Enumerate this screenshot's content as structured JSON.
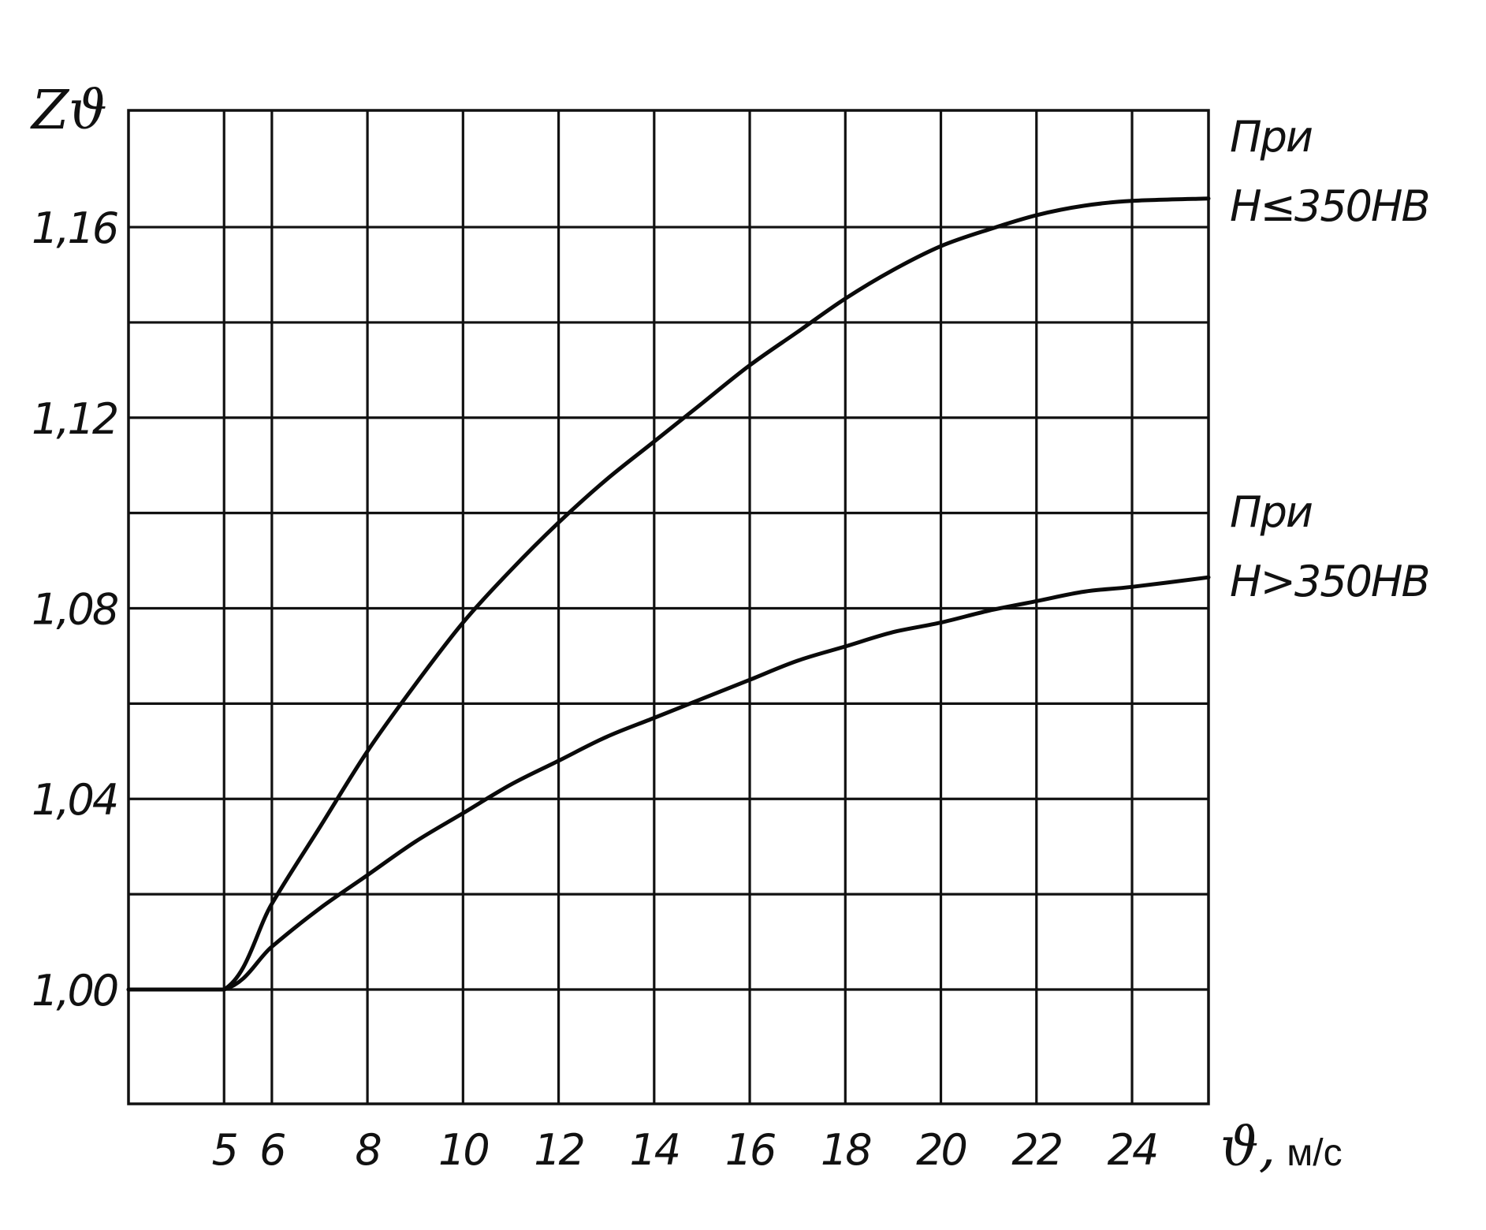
{
  "chart_data": {
    "type": "line",
    "ylabel": "Zϑ",
    "xlabel_symbol": "ϑ,",
    "xlabel_unit": "м/с",
    "xlim": [
      3,
      25.6
    ],
    "ylim": [
      0.976,
      1.1845
    ],
    "x_ticks": [
      "5",
      "6",
      "8",
      "10",
      "12",
      "14",
      "16",
      "18",
      "20",
      "22",
      "24"
    ],
    "y_ticks": [
      "1,16",
      "1,12",
      "1,08",
      "1,04",
      "1,00"
    ],
    "series": [
      {
        "annotation_line1": "При",
        "annotation_line2": "H≤350HB",
        "x": [
          3,
          5,
          6,
          7,
          8,
          9,
          10,
          11,
          12,
          13,
          14,
          15,
          16,
          17,
          18,
          19,
          20,
          21,
          22,
          23,
          24,
          25.6
        ],
        "values": [
          1.0,
          1.0,
          1.018,
          1.034,
          1.05,
          1.064,
          1.077,
          1.088,
          1.098,
          1.107,
          1.115,
          1.123,
          1.131,
          1.138,
          1.145,
          1.151,
          1.156,
          1.1595,
          1.1625,
          1.1645,
          1.1655,
          1.166
        ]
      },
      {
        "annotation_line1": "При",
        "annotation_line2": "H>350HB",
        "x": [
          3,
          5,
          6,
          7,
          8,
          9,
          10,
          11,
          12,
          13,
          14,
          15,
          16,
          17,
          18,
          19,
          20,
          21,
          22,
          23,
          24,
          25.6
        ],
        "values": [
          1.0,
          1.0,
          1.009,
          1.017,
          1.024,
          1.031,
          1.037,
          1.043,
          1.048,
          1.053,
          1.057,
          1.061,
          1.065,
          1.069,
          1.072,
          1.075,
          1.077,
          1.0795,
          1.0815,
          1.0835,
          1.0845,
          1.0865
        ]
      }
    ]
  }
}
